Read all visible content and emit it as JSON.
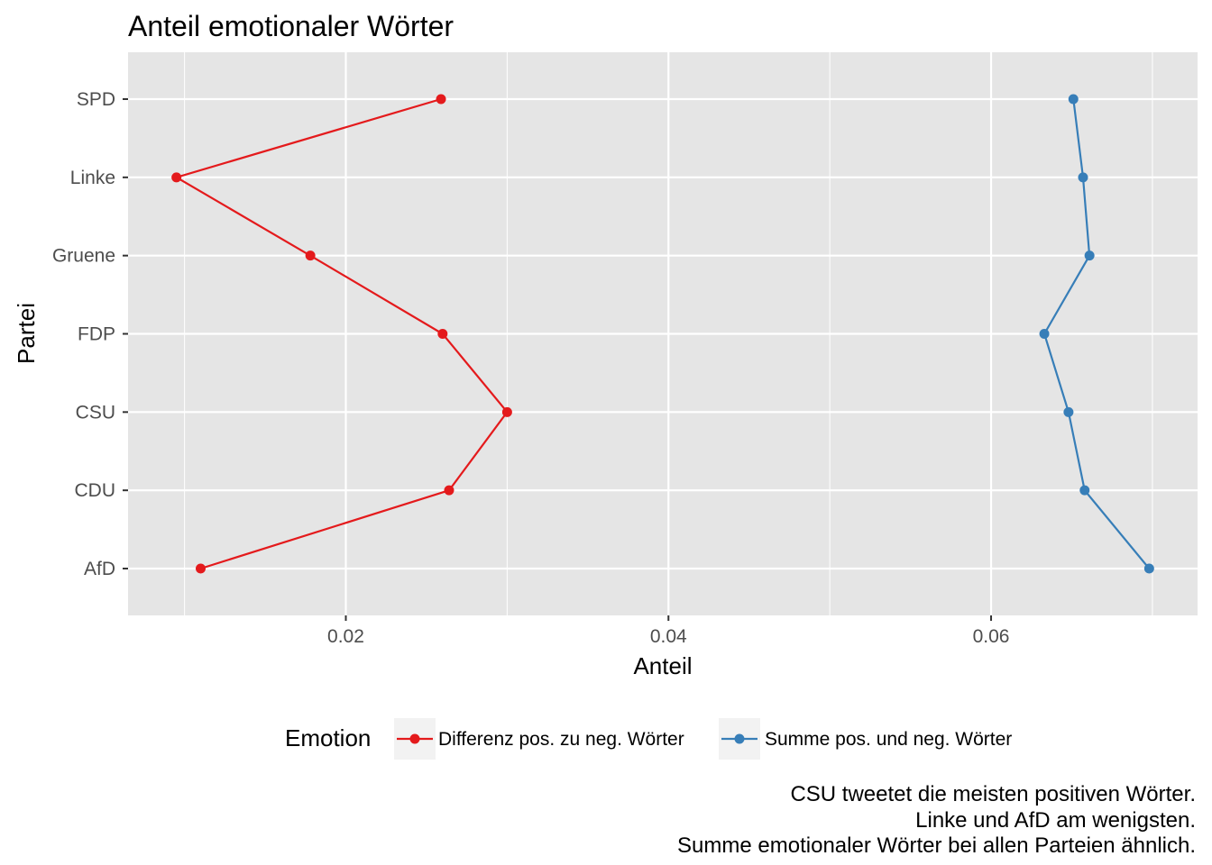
{
  "chart_data": {
    "type": "line",
    "orientation": "horizontal",
    "title": "Anteil emotionaler Wörter",
    "xlabel": "Anteil",
    "ylabel": "Partei",
    "categories": [
      "AfD",
      "CDU",
      "CSU",
      "FDP",
      "Gruene",
      "Linke",
      "SPD"
    ],
    "series": [
      {
        "name": "Differenz pos. zu neg. Wörter",
        "color": "#e41a1c",
        "values": [
          0.011,
          0.0264,
          0.03,
          0.026,
          0.0178,
          0.0095,
          0.0259
        ]
      },
      {
        "name": "Summe pos. und neg. Wörter",
        "color": "#377eb8",
        "values": [
          0.0698,
          0.0658,
          0.0648,
          0.0633,
          0.0661,
          0.0657,
          0.0651
        ]
      }
    ],
    "xlim": [
      0.0065,
      0.0728
    ],
    "xticks": [
      0.02,
      0.04,
      0.06
    ],
    "xtick_labels": [
      "0.02",
      "0.04",
      "0.06"
    ],
    "grid": true,
    "background": "#e5e5e5",
    "legend": {
      "title": "Emotion",
      "position": "bottom"
    },
    "caption": [
      "CSU tweetet die meisten positiven Wörter.",
      "Linke und AfD am wenigsten.",
      "Summe emotionaler Wörter bei allen Parteien ähnlich."
    ]
  }
}
